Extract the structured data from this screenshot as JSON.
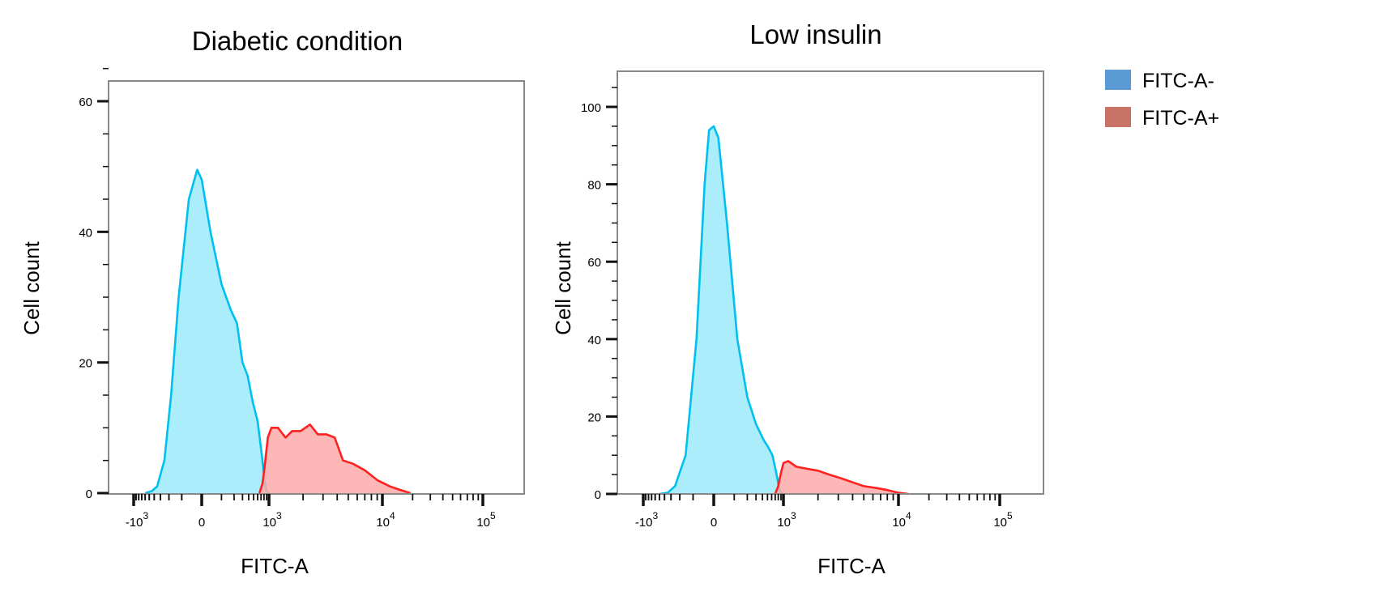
{
  "legend": {
    "items": [
      {
        "label": "FITC-A-",
        "color": "#5b9bd5"
      },
      {
        "label": "FITC-A+",
        "color": "#c87365"
      }
    ]
  },
  "chart_data": [
    {
      "type": "area",
      "title": "Diabetic condition",
      "xlabel": "FITC-A",
      "ylabel": "Cell count",
      "xscale": "biexponential",
      "xticks": [
        -1000,
        0,
        1000,
        10000,
        100000
      ],
      "xtick_labels": [
        [
          "-10",
          "3"
        ],
        [
          "0",
          ""
        ],
        [
          "10",
          "3"
        ],
        [
          "10",
          "4"
        ],
        [
          "10",
          "5"
        ]
      ],
      "yticks": [
        0,
        20,
        40,
        60
      ],
      "ylim": [
        0,
        66
      ],
      "grid": false,
      "series": [
        {
          "name": "FITC-A-",
          "stroke": "#00c0f0",
          "fill": "#9eeafc",
          "x": [
            -600,
            -450,
            -350,
            -250,
            -180,
            -120,
            -60,
            -20,
            0,
            40,
            100,
            170,
            230,
            300,
            380,
            480,
            600,
            720,
            820,
            900,
            1000
          ],
          "y": [
            0,
            0.3,
            1,
            5,
            15,
            30,
            45,
            49.5,
            48,
            40,
            32,
            28,
            26,
            20,
            18,
            14,
            11,
            6,
            2,
            0.3,
            0
          ]
        },
        {
          "name": "FITC-A+",
          "stroke": "#ff2020",
          "fill": "#fdaaaa",
          "x": [
            650,
            750,
            850,
            950,
            1050,
            1200,
            1400,
            1600,
            1900,
            2300,
            2700,
            3200,
            3800,
            4500,
            5500,
            7000,
            9000,
            12000,
            15000,
            19000
          ],
          "y": [
            0,
            1.5,
            5,
            8.5,
            10,
            10,
            8.5,
            9.5,
            9.5,
            10.5,
            9,
            9,
            8.5,
            5,
            4.5,
            3.5,
            2,
            1,
            0.5,
            0
          ]
        }
      ]
    },
    {
      "type": "area",
      "title": "Low insulin",
      "xlabel": "FITC-A",
      "ylabel": "Cell count",
      "xscale": "biexponential",
      "xticks": [
        -1000,
        0,
        1000,
        10000,
        100000
      ],
      "xtick_labels": [
        [
          "-10",
          "3"
        ],
        [
          "0",
          ""
        ],
        [
          "10",
          "3"
        ],
        [
          "10",
          "4"
        ],
        [
          "10",
          "5"
        ]
      ],
      "yticks": [
        0,
        20,
        40,
        60,
        80,
        100
      ],
      "ylim": [
        0,
        105
      ],
      "grid": false,
      "series": [
        {
          "name": "FITC-A-",
          "stroke": "#00c0f0",
          "fill": "#9eeafc",
          "x": [
            -500,
            -350,
            -250,
            -150,
            -80,
            -40,
            -20,
            0,
            20,
            60,
            120,
            200,
            300,
            420,
            520,
            620,
            720,
            820,
            900,
            1000
          ],
          "y": [
            0,
            0.3,
            2,
            10,
            40,
            80,
            94,
            95,
            92,
            70,
            40,
            25,
            18,
            14,
            12,
            10,
            6,
            2,
            0.3,
            0
          ]
        },
        {
          "name": "FITC-A+",
          "stroke": "#ff2020",
          "fill": "#fdaaaa",
          "x": [
            700,
            800,
            900,
            1000,
            1100,
            1300,
            1600,
            2000,
            2500,
            3200,
            4000,
            5000,
            6500,
            8000,
            10000,
            12500
          ],
          "y": [
            0,
            2,
            5.5,
            8,
            8.5,
            7,
            6.5,
            6,
            5,
            4,
            3,
            2,
            1.5,
            1,
            0.3,
            0
          ]
        }
      ]
    }
  ]
}
